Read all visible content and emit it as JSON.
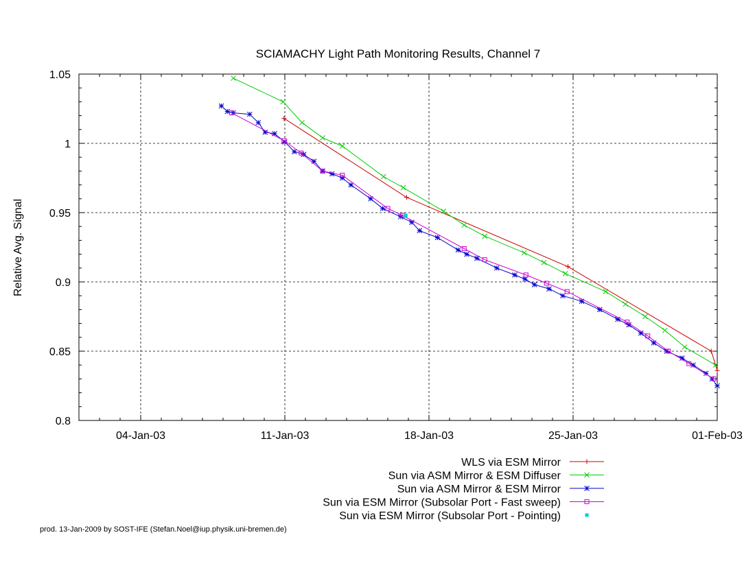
{
  "chart_data": {
    "type": "line",
    "title": "SCIAMACHY Light Path Monitoring Results, Channel 7",
    "ylabel": "Relative Avg. Signal",
    "xlabel": "",
    "xlim": [
      "2003-01-01",
      "2003-02-01"
    ],
    "ylim": [
      0.8,
      1.05
    ],
    "grid": true,
    "legend_position": "bottom-right",
    "x_ticks": [
      {
        "date": "2003-01-04",
        "label": "04-Jan-03"
      },
      {
        "date": "2003-01-11",
        "label": "11-Jan-03"
      },
      {
        "date": "2003-01-18",
        "label": "18-Jan-03"
      },
      {
        "date": "2003-01-25",
        "label": "25-Jan-03"
      },
      {
        "date": "2003-02-01",
        "label": "01-Feb-03"
      }
    ],
    "y_ticks": [
      {
        "value": 0.8,
        "label": "0.8"
      },
      {
        "value": 0.85,
        "label": "0.85"
      },
      {
        "value": 0.9,
        "label": "0.9"
      },
      {
        "value": 0.95,
        "label": "0.95"
      },
      {
        "value": 1.0,
        "label": "1"
      },
      {
        "value": 1.05,
        "label": "1.05"
      }
    ],
    "series": [
      {
        "name": "WLS via ESM Mirror",
        "color": "#cc0000",
        "marker": "plus",
        "points": [
          [
            "2003-01-10T23:00",
            1.018
          ],
          [
            "2003-01-16T22:00",
            0.961
          ],
          [
            "2003-01-24T18:00",
            0.911
          ],
          [
            "2003-01-31T17:00",
            0.85
          ],
          [
            "2003-02-01T00:00",
            0.836
          ]
        ]
      },
      {
        "name": "Sun via ASM Mirror & ESM Diffuser",
        "color": "#00cc00",
        "marker": "x",
        "points": [
          [
            "2003-01-08T12:00",
            1.047
          ],
          [
            "2003-01-10T22:00",
            1.03
          ],
          [
            "2003-01-11T20:00",
            1.015
          ],
          [
            "2003-01-12T20:00",
            1.004
          ],
          [
            "2003-01-13T19:00",
            0.998
          ],
          [
            "2003-01-15T19:00",
            0.976
          ],
          [
            "2003-01-16T18:00",
            0.968
          ],
          [
            "2003-01-18T17:00",
            0.951
          ],
          [
            "2003-01-19T17:00",
            0.941
          ],
          [
            "2003-01-20T17:00",
            0.933
          ],
          [
            "2003-01-22T15:00",
            0.921
          ],
          [
            "2003-01-23T14:00",
            0.914
          ],
          [
            "2003-01-24T15:00",
            0.906
          ],
          [
            "2003-01-26T14:00",
            0.893
          ],
          [
            "2003-01-27T13:00",
            0.884
          ],
          [
            "2003-01-28T12:00",
            0.875
          ],
          [
            "2003-01-29T11:00",
            0.865
          ],
          [
            "2003-01-30T10:00",
            0.853
          ],
          [
            "2003-01-31T22:00",
            0.84
          ]
        ]
      },
      {
        "name": "Sun via ASM Mirror & ESM Mirror",
        "color": "#0000cc",
        "marker": "star",
        "points": [
          [
            "2003-01-07T22:00",
            1.027
          ],
          [
            "2003-01-08T05:00",
            1.023
          ],
          [
            "2003-01-08T12:00",
            1.022
          ],
          [
            "2003-01-09T07:00",
            1.021
          ],
          [
            "2003-01-09T17:00",
            1.015
          ],
          [
            "2003-01-10T01:00",
            1.008
          ],
          [
            "2003-01-10T12:00",
            1.007
          ],
          [
            "2003-01-11T00:00",
            1.001
          ],
          [
            "2003-01-11T11:00",
            0.994
          ],
          [
            "2003-01-11T22:00",
            0.992
          ],
          [
            "2003-01-12T10:00",
            0.987
          ],
          [
            "2003-01-12T20:00",
            0.98
          ],
          [
            "2003-01-13T07:00",
            0.978
          ],
          [
            "2003-01-13T19:00",
            0.975
          ],
          [
            "2003-01-14T05:00",
            0.97
          ],
          [
            "2003-01-15T04:00",
            0.96
          ],
          [
            "2003-01-15T18:00",
            0.953
          ],
          [
            "2003-01-16T15:00",
            0.947
          ],
          [
            "2003-01-17T04:00",
            0.943
          ],
          [
            "2003-01-17T13:00",
            0.937
          ],
          [
            "2003-01-18T10:00",
            0.932
          ],
          [
            "2003-01-19T10:00",
            0.923
          ],
          [
            "2003-01-19T20:00",
            0.92
          ],
          [
            "2003-01-20T08:00",
            0.917
          ],
          [
            "2003-01-21T07:00",
            0.91
          ],
          [
            "2003-01-22T04:00",
            0.905
          ],
          [
            "2003-01-22T16:00",
            0.902
          ],
          [
            "2003-01-23T03:00",
            0.898
          ],
          [
            "2003-01-23T20:00",
            0.895
          ],
          [
            "2003-01-24T12:00",
            0.89
          ],
          [
            "2003-01-25T10:00",
            0.886
          ],
          [
            "2003-01-26T07:00",
            0.88
          ],
          [
            "2003-01-27T04:00",
            0.873
          ],
          [
            "2003-01-27T17:00",
            0.869
          ],
          [
            "2003-01-28T07:00",
            0.863
          ],
          [
            "2003-01-28T22:00",
            0.856
          ],
          [
            "2003-01-29T13:00",
            0.85
          ],
          [
            "2003-01-30T07:00",
            0.845
          ],
          [
            "2003-01-30T20:00",
            0.84
          ],
          [
            "2003-01-31T11:00",
            0.834
          ],
          [
            "2003-01-31T18:00",
            0.83
          ],
          [
            "2003-02-01T00:00",
            0.825
          ]
        ]
      },
      {
        "name": "Sun via ESM Mirror (Subsolar Port - Fast sweep)",
        "color": "#cc00cc",
        "marker": "square",
        "points": [
          [
            "2003-01-08T10:00",
            1.022
          ],
          [
            "2003-01-10T23:00",
            1.002
          ],
          [
            "2003-01-11T19:00",
            0.993
          ],
          [
            "2003-01-12T20:00",
            0.98
          ],
          [
            "2003-01-13T19:00",
            0.977
          ],
          [
            "2003-01-16T00:00",
            0.953
          ],
          [
            "2003-01-16T17:00",
            0.948
          ],
          [
            "2003-01-19T17:00",
            0.924
          ],
          [
            "2003-01-20T17:00",
            0.916
          ],
          [
            "2003-01-22T17:00",
            0.905
          ],
          [
            "2003-01-23T17:00",
            0.899
          ],
          [
            "2003-01-24T17:00",
            0.893
          ],
          [
            "2003-01-27T15:00",
            0.871
          ],
          [
            "2003-01-28T15:00",
            0.861
          ],
          [
            "2003-01-29T15:00",
            0.85
          ],
          [
            "2003-01-30T15:00",
            0.841
          ],
          [
            "2003-01-31T20:00",
            0.83
          ]
        ]
      },
      {
        "name": "Sun via ESM Mirror (Subsolar Port - Pointing)",
        "color": "#00cccc",
        "marker": "dot",
        "points": [
          [
            "2003-01-16T21:00",
            0.948
          ]
        ]
      }
    ]
  },
  "footer": {
    "credit": "prod. 13-Jan-2009 by SOST-IFE (Stefan.Noel@iup.physik.uni-bremen.de)"
  }
}
